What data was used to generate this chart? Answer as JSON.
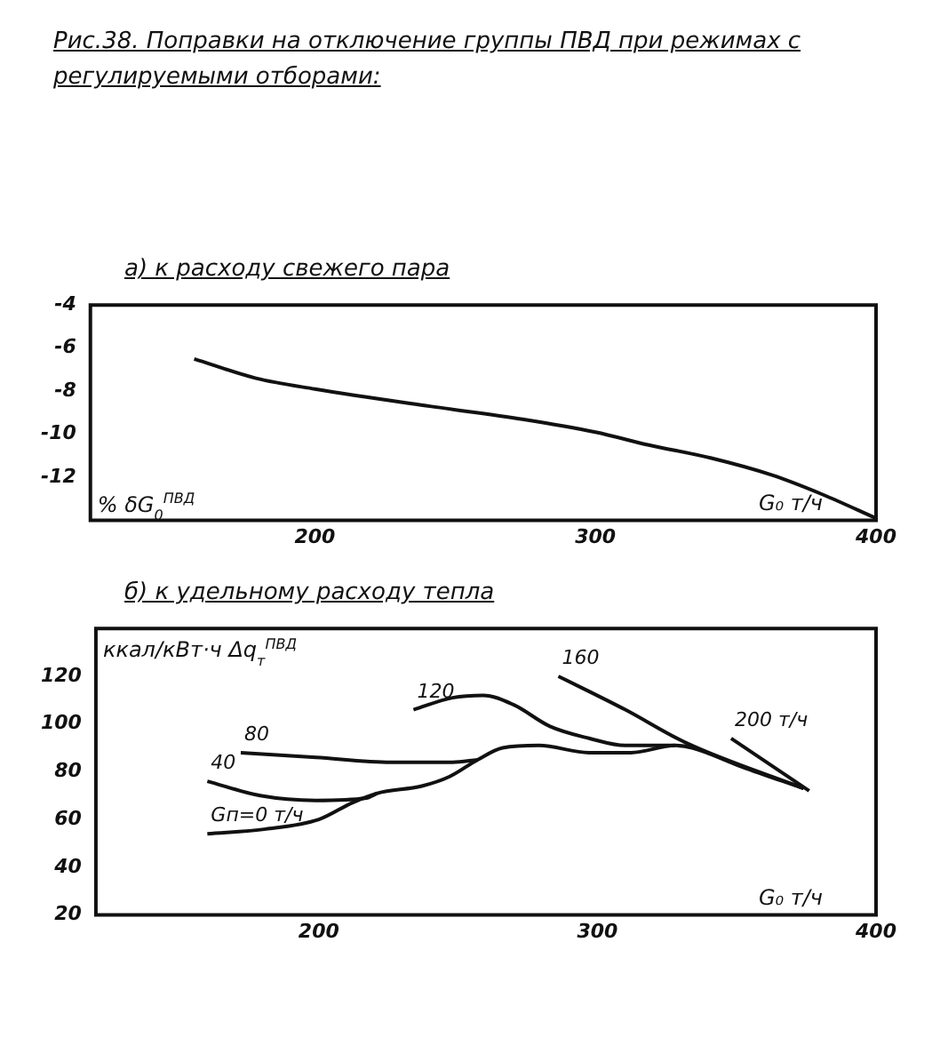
{
  "chart_data": [
    {
      "type": "line",
      "title": "Рис.38. Поправки на отключение группы ПВД при режимах с регулируемыми отборами:",
      "subtitle": "а) к расходу свежего пара",
      "ylabel": "% δG$_{0}$$^{ПВД}$",
      "xlabel": "G₀ т/ч",
      "xlim": [
        120,
        400
      ],
      "xticks": [
        200,
        300,
        400
      ],
      "ylim": [
        -14,
        -4
      ],
      "yticks": [
        -4,
        -6,
        -8,
        -10,
        -12
      ],
      "grid": false,
      "legend": false,
      "marker": "none",
      "line_style": "solid",
      "series": [
        {
          "color": "#111111",
          "x": [
            157,
            179,
            200,
            241,
            274,
            300,
            319,
            341,
            363,
            381,
            400
          ],
          "values": [
            -6.5,
            -7.4,
            -7.9,
            -8.7,
            -9.3,
            -9.9,
            -10.5,
            -11.1,
            -11.9,
            -12.8,
            -13.9
          ]
        }
      ]
    },
    {
      "type": "line",
      "title": "б) к удельному расходу тепла",
      "ylabel": "ккал/кВт·ч Δq$_{т}$$^{ПВД}$",
      "xlabel": "G₀ т/ч",
      "xlim": [
        120,
        400
      ],
      "xticks": [
        200,
        300,
        400
      ],
      "ylim": [
        20,
        140
      ],
      "yticks": [
        20,
        40,
        60,
        80,
        100,
        120
      ],
      "grid": false,
      "legend": false,
      "marker": "none",
      "line_style": "solid",
      "series": [
        {
          "name": "Gп=0 т/ч",
          "color": "#111111",
          "x": [
            160,
            181,
            200,
            212,
            221,
            237,
            247,
            257,
            266,
            279,
            297,
            312,
            328,
            334,
            352,
            374
          ],
          "values": [
            54,
            56,
            60,
            67,
            71,
            74,
            78,
            85,
            90,
            91,
            88,
            88,
            91,
            90,
            82,
            73
          ]
        },
        {
          "name": "40",
          "color": "#111111",
          "x": [
            160,
            179,
            199,
            217,
            221
          ],
          "values": [
            76,
            70,
            68,
            69,
            71
          ]
        },
        {
          "name": "80",
          "color": "#111111",
          "x": [
            172,
            199,
            226,
            248,
            257
          ],
          "values": [
            88,
            86,
            84,
            84,
            85
          ]
        },
        {
          "name": "120",
          "color": "#111111",
          "x": [
            234,
            248,
            259,
            270,
            283,
            297,
            310,
            328
          ],
          "values": [
            106,
            111,
            112,
            108,
            99,
            94,
            91,
            91
          ]
        },
        {
          "name": "160",
          "color": "#111111",
          "x": [
            286,
            310,
            332,
            374
          ],
          "values": [
            120,
            106,
            92,
            73
          ]
        },
        {
          "name": "200 т/ч",
          "color": "#111111",
          "x": [
            348,
            376
          ],
          "values": [
            94,
            72
          ]
        }
      ]
    }
  ]
}
